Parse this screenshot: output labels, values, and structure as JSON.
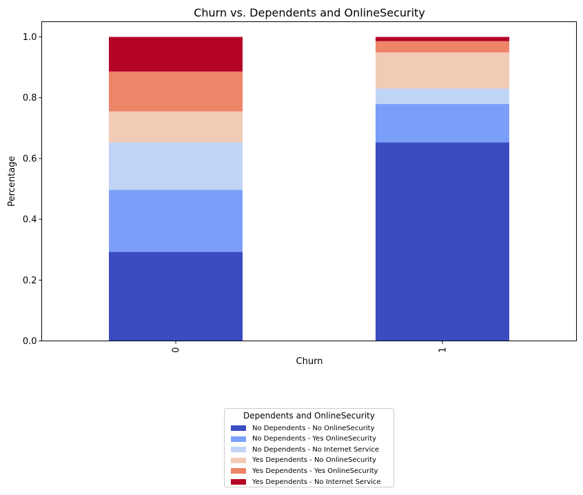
{
  "chart_data": {
    "type": "bar",
    "stacked": true,
    "title": "Churn vs. Dependents and OnlineSecurity",
    "xlabel": "Churn",
    "ylabel": "Percentage",
    "categories": [
      "0",
      "1"
    ],
    "ylim": [
      0,
      1.05
    ],
    "yticks": [
      "0.0",
      "0.2",
      "0.4",
      "0.6",
      "0.8",
      "1.0"
    ],
    "grid": false,
    "legend_title": "Dependents and OnlineSecurity",
    "legend_position": "bottom-center",
    "series": [
      {
        "name": "No Dependents - No OnlineSecurity",
        "color": "#3b4cc0",
        "values": [
          0.293,
          0.653
        ]
      },
      {
        "name": "No Dependents - Yes OnlineSecurity",
        "color": "#7b9ff9",
        "values": [
          0.204,
          0.126
        ]
      },
      {
        "name": "No Dependents - No Internet Service",
        "color": "#c0d4f5",
        "values": [
          0.156,
          0.051
        ]
      },
      {
        "name": "Yes Dependents - No OnlineSecurity",
        "color": "#f2cbb7",
        "values": [
          0.102,
          0.119
        ]
      },
      {
        "name": "Yes Dependents - Yes OnlineSecurity",
        "color": "#ee8468",
        "values": [
          0.131,
          0.037
        ]
      },
      {
        "name": "Yes Dependents - No Internet Service",
        "color": "#b40426",
        "values": [
          0.114,
          0.014
        ]
      }
    ]
  }
}
